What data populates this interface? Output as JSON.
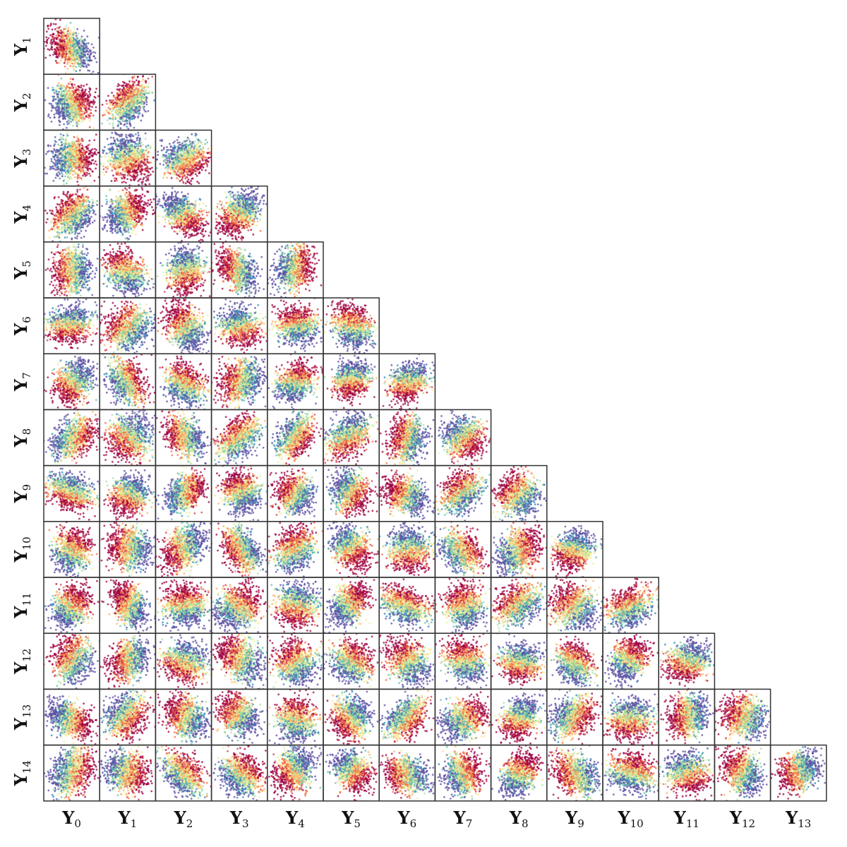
{
  "chart_data": {
    "type": "scatter",
    "title": "",
    "description": "Lower-triangular pair-plot (scatter matrix) of latent dimensions Y0..Y14; each panel shows a cloud of points colored by a Spectral colormap.",
    "row_labels": [
      {
        "base": "Y",
        "sub": "1"
      },
      {
        "base": "Y",
        "sub": "2"
      },
      {
        "base": "Y",
        "sub": "3"
      },
      {
        "base": "Y",
        "sub": "4"
      },
      {
        "base": "Y",
        "sub": "5"
      },
      {
        "base": "Y",
        "sub": "6"
      },
      {
        "base": "Y",
        "sub": "7"
      },
      {
        "base": "Y",
        "sub": "8"
      },
      {
        "base": "Y",
        "sub": "9"
      },
      {
        "base": "Y",
        "sub": "10"
      },
      {
        "base": "Y",
        "sub": "11"
      },
      {
        "base": "Y",
        "sub": "12"
      },
      {
        "base": "Y",
        "sub": "13"
      },
      {
        "base": "Y",
        "sub": "14"
      }
    ],
    "col_labels": [
      {
        "base": "Y",
        "sub": "0"
      },
      {
        "base": "Y",
        "sub": "1"
      },
      {
        "base": "Y",
        "sub": "2"
      },
      {
        "base": "Y",
        "sub": "3"
      },
      {
        "base": "Y",
        "sub": "4"
      },
      {
        "base": "Y",
        "sub": "5"
      },
      {
        "base": "Y",
        "sub": "6"
      },
      {
        "base": "Y",
        "sub": "7"
      },
      {
        "base": "Y",
        "sub": "8"
      },
      {
        "base": "Y",
        "sub": "9"
      },
      {
        "base": "Y",
        "sub": "10"
      },
      {
        "base": "Y",
        "sub": "11"
      },
      {
        "base": "Y",
        "sub": "12"
      },
      {
        "base": "Y",
        "sub": "13"
      }
    ],
    "layout": "lower-triangular",
    "points_per_panel": 1000,
    "colormap": [
      "#9e0142",
      "#d53e4f",
      "#f46d43",
      "#fdae61",
      "#fee08b",
      "#e6f598",
      "#abdda4",
      "#66c2a5",
      "#3288bd",
      "#5e4fa2"
    ],
    "grid": false,
    "legend": "none",
    "axis_ticks": false
  },
  "style": {
    "frame_color": "#333333",
    "background": "#ffffff"
  }
}
